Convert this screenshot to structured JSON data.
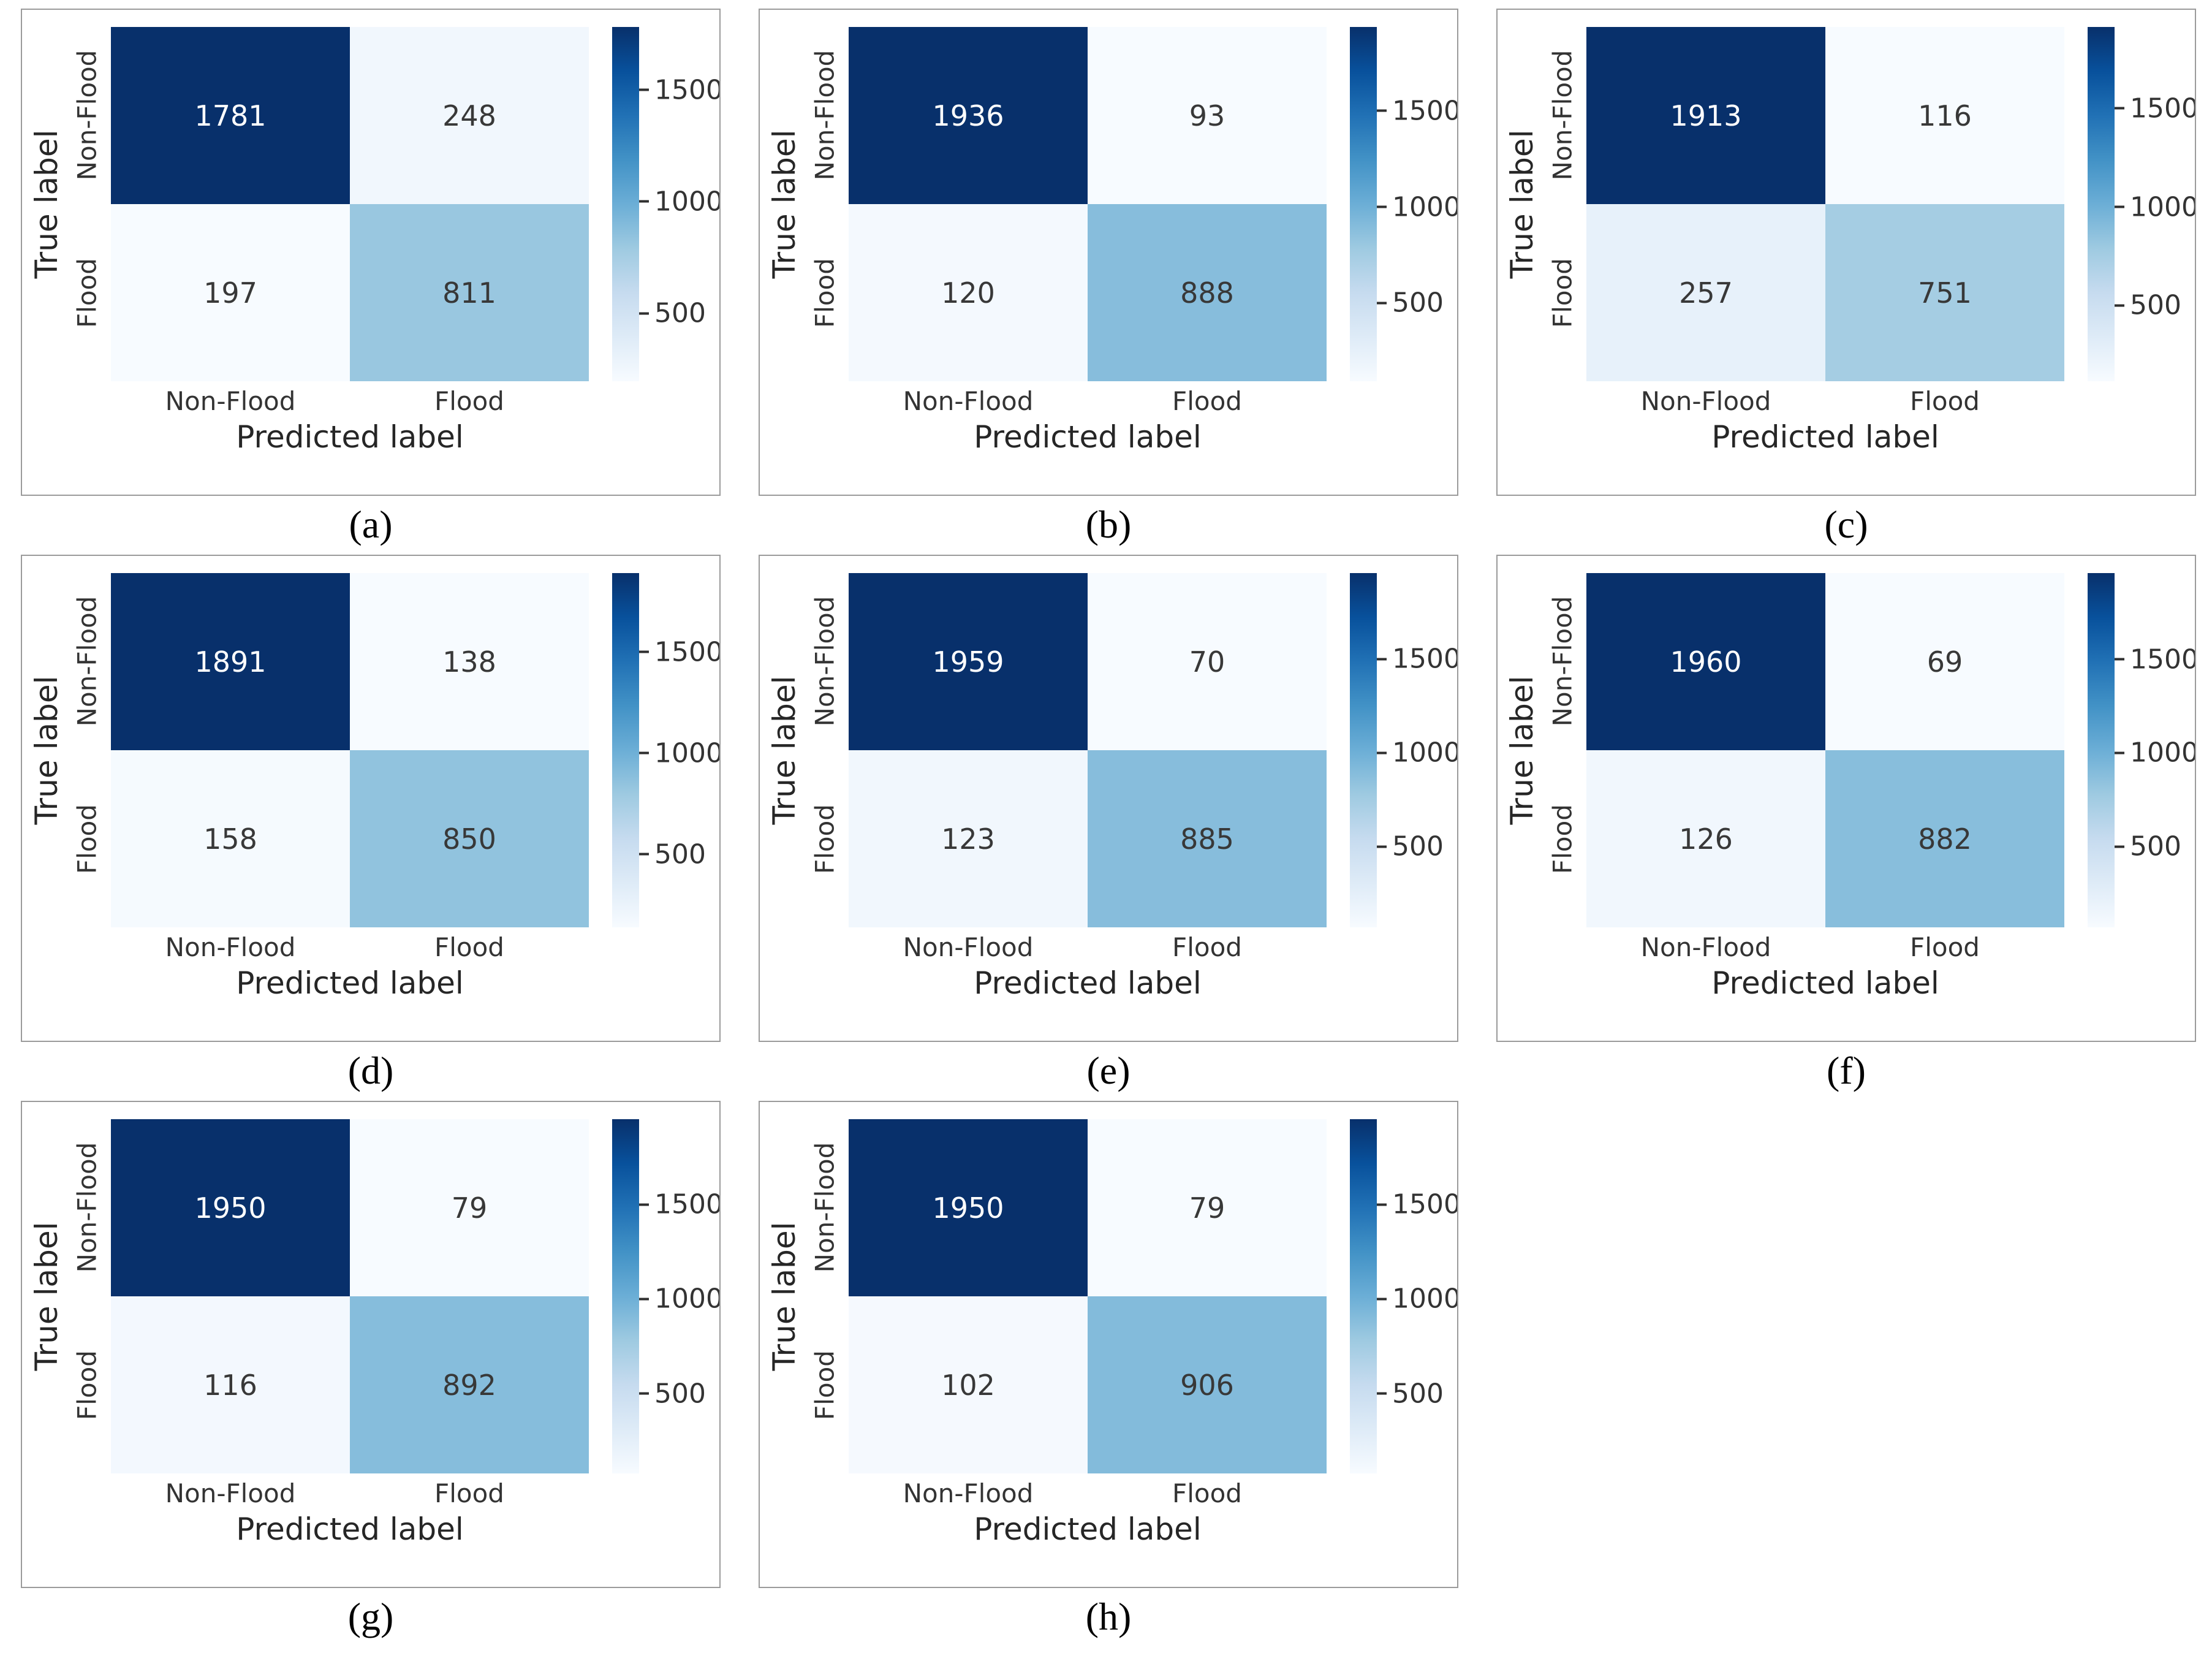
{
  "figure": {
    "type": "confusion-matrix-grid",
    "xlabel": "Predicted label",
    "ylabel": "True label",
    "classes": [
      "Non-Flood",
      "Flood"
    ],
    "colorbar_ticks": [
      1500,
      1000,
      500
    ],
    "colors": {
      "colormap": "Blues",
      "cmap_dark_end": "#08306b",
      "cmap_light_end": "#f7fbff",
      "panel_border": "#9b9b9b",
      "axis_text": "#262626",
      "tick_text": "#333333",
      "annot_on_dark": "#ffffff",
      "annot_on_light": "#383838"
    }
  },
  "chart_data": [
    {
      "type": "heatmap",
      "caption": "(a)",
      "x": [
        "Non-Flood",
        "Flood"
      ],
      "y": [
        "Non-Flood",
        "Flood"
      ],
      "values": [
        [
          1781,
          248
        ],
        [
          197,
          811
        ]
      ]
    },
    {
      "type": "heatmap",
      "caption": "(b)",
      "x": [
        "Non-Flood",
        "Flood"
      ],
      "y": [
        "Non-Flood",
        "Flood"
      ],
      "values": [
        [
          1936,
          93
        ],
        [
          120,
          888
        ]
      ]
    },
    {
      "type": "heatmap",
      "caption": "(c)",
      "x": [
        "Non-Flood",
        "Flood"
      ],
      "y": [
        "Non-Flood",
        "Flood"
      ],
      "values": [
        [
          1913,
          116
        ],
        [
          257,
          751
        ]
      ]
    },
    {
      "type": "heatmap",
      "caption": "(d)",
      "x": [
        "Non-Flood",
        "Flood"
      ],
      "y": [
        "Non-Flood",
        "Flood"
      ],
      "values": [
        [
          1891,
          138
        ],
        [
          158,
          850
        ]
      ]
    },
    {
      "type": "heatmap",
      "caption": "(e)",
      "x": [
        "Non-Flood",
        "Flood"
      ],
      "y": [
        "Non-Flood",
        "Flood"
      ],
      "values": [
        [
          1959,
          70
        ],
        [
          123,
          885
        ]
      ]
    },
    {
      "type": "heatmap",
      "caption": "(f)",
      "x": [
        "Non-Flood",
        "Flood"
      ],
      "y": [
        "Non-Flood",
        "Flood"
      ],
      "values": [
        [
          1960,
          69
        ],
        [
          126,
          882
        ]
      ]
    },
    {
      "type": "heatmap",
      "caption": "(g)",
      "x": [
        "Non-Flood",
        "Flood"
      ],
      "y": [
        "Non-Flood",
        "Flood"
      ],
      "values": [
        [
          1950,
          79
        ],
        [
          116,
          892
        ]
      ]
    },
    {
      "type": "heatmap",
      "caption": "(h)",
      "x": [
        "Non-Flood",
        "Flood"
      ],
      "y": [
        "Non-Flood",
        "Flood"
      ],
      "values": [
        [
          1950,
          79
        ],
        [
          102,
          906
        ]
      ]
    }
  ]
}
